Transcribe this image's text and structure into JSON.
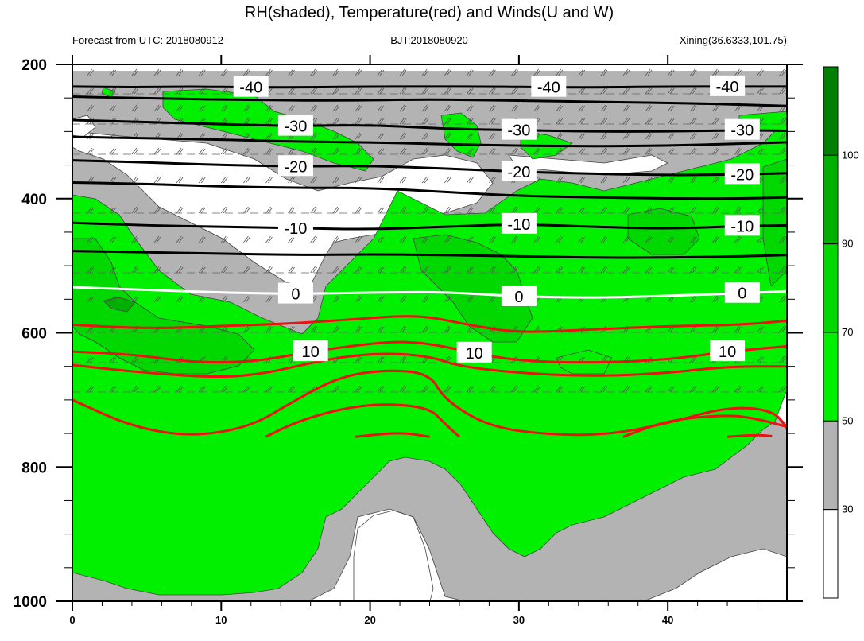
{
  "title": "RH(shaded), Temperature(red) and Winds(U and W)",
  "subtitle_left": "Forecast from UTC: 2018080912",
  "subtitle_center": "BJT:2018080920",
  "subtitle_right": "Xining(36.6333,101.75)",
  "colors": {
    "rh_30_50": "#b3b3b3",
    "rh_50_70": "#00f000",
    "rh_70_90": "#00d800",
    "rh_90_100": "#00b000",
    "rh_100_plus": "#008000",
    "temp_warm_line": "#ee1111",
    "temp_cold_line": "#000000",
    "zero_line": "#ffffff"
  },
  "chart_data": {
    "type": "contour",
    "xlim": [
      0,
      48
    ],
    "ylim": [
      1000,
      200
    ],
    "y_ticks": [
      200,
      400,
      600,
      800,
      1000
    ],
    "x_ticks": [
      0,
      10,
      20,
      30,
      40
    ],
    "colorbar": {
      "levels": [
        30,
        50,
        70,
        90,
        100
      ],
      "labels": [
        "30",
        "50",
        "70",
        "90",
        "100"
      ],
      "colors": [
        "#ffffff",
        "#b3b3b3",
        "#00f000",
        "#00d800",
        "#00b000",
        "#008000"
      ]
    },
    "temperature_contours": [
      {
        "level": -40,
        "label": "-40",
        "color": "#000000",
        "points": [
          [
            0,
            233
          ],
          [
            4,
            234
          ],
          [
            8,
            233
          ],
          [
            12,
            234
          ],
          [
            16,
            234
          ],
          [
            20,
            233
          ],
          [
            24,
            233
          ],
          [
            28,
            233
          ],
          [
            32,
            234
          ],
          [
            36,
            234
          ],
          [
            40,
            233
          ],
          [
            44,
            233
          ],
          [
            48,
            233
          ]
        ]
      },
      {
        "level": -40,
        "label": "",
        "color": "#000000",
        "points": [
          [
            0,
            248
          ],
          [
            6,
            251
          ],
          [
            12,
            253
          ],
          [
            18,
            254
          ],
          [
            24,
            252
          ],
          [
            30,
            254
          ],
          [
            36,
            256
          ],
          [
            42,
            258
          ],
          [
            48,
            262
          ]
        ]
      },
      {
        "level": -30,
        "label": "-30",
        "color": "#000000",
        "points": [
          [
            0,
            283
          ],
          [
            5,
            286
          ],
          [
            10,
            289
          ],
          [
            15,
            292
          ],
          [
            20,
            290
          ],
          [
            25,
            296
          ],
          [
            30,
            298
          ],
          [
            35,
            300
          ],
          [
            40,
            300
          ],
          [
            45,
            298
          ],
          [
            48,
            299
          ]
        ]
      },
      {
        "level": -30,
        "label": "",
        "color": "#000000",
        "points": [
          [
            0,
            308
          ],
          [
            5,
            310
          ],
          [
            10,
            312
          ],
          [
            15,
            315
          ],
          [
            20,
            316
          ],
          [
            25,
            319
          ],
          [
            30,
            321
          ],
          [
            35,
            322
          ],
          [
            40,
            321
          ],
          [
            45,
            318
          ],
          [
            48,
            316
          ]
        ]
      },
      {
        "level": -20,
        "label": "-20",
        "color": "#000000",
        "points": [
          [
            0,
            343
          ],
          [
            5,
            346
          ],
          [
            10,
            350
          ],
          [
            15,
            352
          ],
          [
            20,
            351
          ],
          [
            25,
            355
          ],
          [
            30,
            360
          ],
          [
            35,
            363
          ],
          [
            40,
            365
          ],
          [
            45,
            364
          ],
          [
            48,
            362
          ]
        ]
      },
      {
        "level": -20,
        "label": "",
        "color": "#000000",
        "points": [
          [
            0,
            376
          ],
          [
            5,
            378
          ],
          [
            10,
            382
          ],
          [
            15,
            384
          ],
          [
            20,
            384
          ],
          [
            25,
            390
          ],
          [
            30,
            396
          ],
          [
            35,
            398
          ],
          [
            40,
            400
          ],
          [
            45,
            400
          ],
          [
            48,
            398
          ]
        ]
      },
      {
        "level": -10,
        "label": "-10",
        "color": "#000000",
        "points": [
          [
            0,
            436
          ],
          [
            5,
            440
          ],
          [
            10,
            442
          ],
          [
            15,
            444
          ],
          [
            20,
            446
          ],
          [
            25,
            442
          ],
          [
            30,
            438
          ],
          [
            35,
            442
          ],
          [
            40,
            445
          ],
          [
            45,
            441
          ],
          [
            48,
            440
          ]
        ]
      },
      {
        "level": -10,
        "label": "",
        "color": "#000000",
        "points": [
          [
            0,
            478
          ],
          [
            5,
            480
          ],
          [
            10,
            482
          ],
          [
            15,
            484
          ],
          [
            20,
            483
          ],
          [
            25,
            484
          ],
          [
            30,
            486
          ],
          [
            35,
            488
          ],
          [
            40,
            488
          ],
          [
            45,
            486
          ],
          [
            48,
            484
          ]
        ]
      },
      {
        "level": 0,
        "label": "0",
        "color": "#ffffff",
        "points": [
          [
            0,
            532
          ],
          [
            5,
            536
          ],
          [
            10,
            540
          ],
          [
            15,
            542
          ],
          [
            20,
            540
          ],
          [
            25,
            539
          ],
          [
            30,
            546
          ],
          [
            35,
            548
          ],
          [
            40,
            545
          ],
          [
            45,
            541
          ],
          [
            48,
            538
          ]
        ]
      },
      {
        "level": 5,
        "label": "",
        "color": "#ee1111",
        "points": [
          [
            0,
            588
          ],
          [
            5,
            594
          ],
          [
            10,
            590
          ],
          [
            15,
            586
          ],
          [
            20,
            578
          ],
          [
            22,
            575
          ],
          [
            24,
            576
          ],
          [
            27,
            590
          ],
          [
            30,
            600
          ],
          [
            35,
            595
          ],
          [
            40,
            590
          ],
          [
            45,
            588
          ],
          [
            48,
            582
          ]
        ]
      },
      {
        "level": 10,
        "label": "10",
        "color": "#ee1111",
        "points": [
          [
            0,
            628
          ],
          [
            4,
            632
          ],
          [
            8,
            644
          ],
          [
            12,
            644
          ],
          [
            16,
            628
          ],
          [
            20,
            616
          ],
          [
            22,
            613
          ],
          [
            24,
            616
          ],
          [
            27,
            630
          ],
          [
            30,
            642
          ],
          [
            35,
            645
          ],
          [
            40,
            640
          ],
          [
            44,
            628
          ],
          [
            48,
            620
          ]
        ]
      },
      {
        "level": 10,
        "label": "",
        "color": "#ee1111",
        "points": [
          [
            0,
            648
          ],
          [
            5,
            660
          ],
          [
            10,
            667
          ],
          [
            13,
            660
          ],
          [
            15,
            650
          ],
          [
            18,
            636
          ],
          [
            21,
            630
          ],
          [
            24,
            635
          ],
          [
            26,
            650
          ],
          [
            30,
            660
          ],
          [
            35,
            665
          ],
          [
            40,
            660
          ],
          [
            44,
            650
          ],
          [
            48,
            650
          ]
        ]
      },
      {
        "level": 15,
        "label": "",
        "color": "#ee1111",
        "points": [
          [
            0,
            700
          ],
          [
            4,
            740
          ],
          [
            8,
            755
          ],
          [
            12,
            740
          ],
          [
            15,
            700
          ],
          [
            18,
            665
          ],
          [
            21,
            655
          ],
          [
            24,
            660
          ],
          [
            25,
            700
          ],
          [
            28,
            740
          ],
          [
            32,
            752
          ],
          [
            36,
            752
          ],
          [
            40,
            735
          ],
          [
            44,
            710
          ],
          [
            47,
            715
          ],
          [
            48,
            740
          ]
        ]
      },
      {
        "level": 20,
        "label": "",
        "color": "#ee1111",
        "points": [
          [
            13,
            755
          ],
          [
            15,
            733
          ],
          [
            18,
            713
          ],
          [
            21,
            705
          ],
          [
            24,
            712
          ],
          [
            25,
            735
          ],
          [
            26,
            755
          ]
        ]
      },
      {
        "level": 20,
        "label": "",
        "color": "#ee1111",
        "points": [
          [
            37,
            755
          ],
          [
            40,
            730
          ],
          [
            44,
            722
          ],
          [
            46,
            728
          ],
          [
            48,
            740
          ]
        ]
      },
      {
        "level": 20,
        "label": "",
        "color": "#ee1111",
        "points": [
          [
            19,
            755
          ],
          [
            22,
            748
          ],
          [
            24,
            755
          ]
        ]
      },
      {
        "level": 20,
        "label": "",
        "color": "#ee1111",
        "points": [
          [
            44,
            755
          ],
          [
            46,
            752
          ],
          [
            47,
            754
          ]
        ]
      }
    ]
  }
}
